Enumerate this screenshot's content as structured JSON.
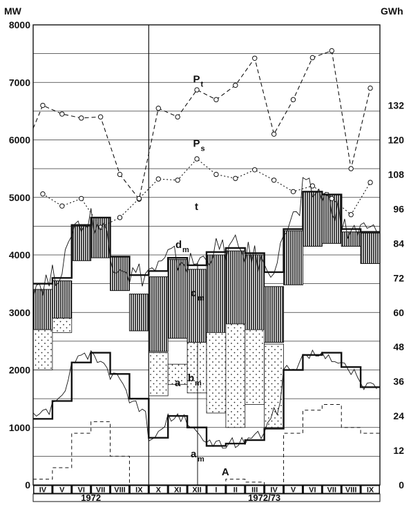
{
  "chart_data": {
    "type": "line",
    "left_axis": {
      "unit": "MW",
      "ticks": [
        0,
        1000,
        2000,
        3000,
        4000,
        5000,
        6000,
        7000,
        8000
      ],
      "range": [
        0,
        8000
      ]
    },
    "right_axis": {
      "unit": "GWh",
      "ticks": [
        0,
        12,
        24,
        36,
        48,
        60,
        72,
        84,
        96,
        108,
        120,
        132
      ],
      "range": [
        0,
        160
      ]
    },
    "months": [
      "IV",
      "V",
      "VI",
      "VII",
      "VIII",
      "IX",
      "X",
      "XI",
      "XII",
      "I",
      "II",
      "III",
      "IV",
      "V",
      "VI",
      "VII",
      "VIII",
      "IX"
    ],
    "year_labels": [
      {
        "text": "1972",
        "center_index": 2.5
      },
      {
        "text": "1972/73",
        "center_index": 11.5
      }
    ],
    "series": [
      {
        "name": "P",
        "sub": "t",
        "values": [
          6600,
          6450,
          6380,
          6400,
          5400,
          4970,
          6550,
          6400,
          6870,
          6700,
          6950,
          7420,
          6100,
          6700,
          7430,
          7550,
          5500,
          6900
        ],
        "start_value": 6200,
        "style": "dashed",
        "label_index": 8.3,
        "label_value": 7000
      },
      {
        "name": "P",
        "sub": "s",
        "values": [
          5060,
          4850,
          4980,
          4480,
          4650,
          4980,
          5320,
          5300,
          5670,
          5400,
          5330,
          5480,
          5300,
          5100,
          5200,
          4980,
          4700,
          5260
        ],
        "style": "dotted",
        "label_index": 8.3,
        "label_value": 5880
      },
      {
        "name": "a",
        "sub": "m",
        "values": [
          1150,
          1460,
          2130,
          2300,
          1930,
          1500,
          820,
          1200,
          1000,
          680,
          720,
          780,
          980,
          2000,
          2260,
          2300,
          2050,
          1700
        ],
        "style": "step-thick"
      },
      {
        "name": "T",
        "sub": "",
        "values": [
          3500,
          3600,
          4520,
          4650,
          3970,
          3650,
          3720,
          3950,
          3820,
          4050,
          4120,
          4030,
          3700,
          4450,
          5100,
          5050,
          4450,
          4400
        ],
        "style": "step-thick"
      },
      {
        "name": "A",
        "sub": "",
        "values_gwh": [
          2,
          6,
          18,
          22,
          10,
          0,
          0,
          0,
          0,
          0,
          2,
          1,
          0,
          18,
          26,
          28,
          20,
          18
        ],
        "style": "step-dashed",
        "label_index": 10.5,
        "label_value": 170
      }
    ],
    "hatched_band_cm": {
      "name": "c",
      "sub": "m",
      "low": [
        2700,
        2900,
        3900,
        3950,
        3380,
        2680,
        2320,
        2550,
        2480,
        2520,
        2570,
        2500,
        2480,
        3480,
        4150,
        4200,
        4150,
        3850
      ],
      "high": [
        3400,
        3550,
        4500,
        4650,
        3970,
        3320,
        3620,
        3920,
        3750,
        4000,
        4070,
        4000,
        3450,
        4420,
        5100,
        5050,
        4400,
        4380
      ]
    },
    "dotted_band_bm": {
      "name": "b",
      "sub": "m",
      "low": [
        2000,
        2650,
        0,
        0,
        0,
        0,
        1550,
        1750,
        1600,
        1250,
        1000,
        1400,
        1000,
        0,
        0,
        0,
        0,
        0
      ],
      "high": [
        2700,
        2900,
        0,
        0,
        0,
        0,
        2300,
        2100,
        2480,
        2650,
        2800,
        2700,
        2450,
        0,
        0,
        0,
        0,
        0
      ]
    },
    "annotations": [
      {
        "name": "t",
        "sub": ""
      },
      {
        "name": "d",
        "sub": "m"
      },
      {
        "name": "c",
        "sub": "m"
      },
      {
        "name": "b",
        "sub": "m"
      },
      {
        "name": "a",
        "sub": ""
      },
      {
        "name": "a",
        "sub": "m"
      }
    ],
    "grid": true,
    "legend": "none"
  }
}
